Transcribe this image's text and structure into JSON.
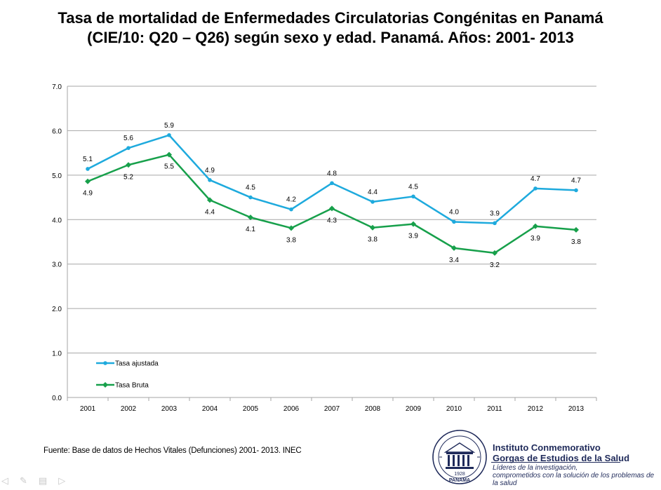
{
  "title": {
    "line1": "Tasa de mortalidad de Enfermedades Circulatorias Congénitas en Panamá",
    "line2": "(CIE/10: Q20 – Q26) según sexo y edad. Panamá. Años: 2001- 2013"
  },
  "source": "Fuente: Base de datos de Hechos Vitales (Defunciones) 2001- 2013. INEC",
  "institution": {
    "name_line1": "Instituto Conmemorativo",
    "name_line2": "Gorgas de Estudios de la Salud",
    "tagline_line1": "Líderes de la investigación,",
    "tagline_line2": "comprometidos con la solución de los problemas de la salud",
    "seal_year": "1928",
    "seal_label": "PANAMA"
  },
  "colors": {
    "tasa_ajustada": "#1eaadd",
    "tasa_bruta": "#17a04b",
    "grid": "#a6a6a6"
  },
  "chart_data": {
    "type": "line",
    "x": [
      "2001",
      "2002",
      "2003",
      "2004",
      "2005",
      "2006",
      "2007",
      "2008",
      "2009",
      "2010",
      "2011",
      "2012",
      "2013"
    ],
    "yticks": [
      "0.0",
      "1.0",
      "2.0",
      "3.0",
      "4.0",
      "5.0",
      "6.0",
      "7.0"
    ],
    "ylim": [
      0,
      7
    ],
    "grid": true,
    "legend": "bottom-left",
    "series": [
      {
        "name": "Tasa ajustada",
        "values": [
          5.14,
          5.61,
          5.9,
          4.89,
          4.5,
          4.23,
          4.82,
          4.4,
          4.52,
          3.95,
          3.92,
          4.7,
          4.66
        ],
        "labels": [
          "5.1",
          "5.6",
          "5.9",
          "4.9",
          "4.5",
          "4.2",
          "4.8",
          "4.4",
          "4.5",
          "4.0",
          "3.9",
          "4.7",
          "4.7"
        ]
      },
      {
        "name": "Tasa Bruta",
        "values": [
          4.86,
          5.23,
          5.46,
          4.44,
          4.05,
          3.81,
          4.25,
          3.82,
          3.9,
          3.36,
          3.25,
          3.85,
          3.77
        ],
        "labels": [
          "4.9",
          "5.2",
          "5.5",
          "4.4",
          "4.1",
          "3.8",
          "4.3",
          "3.8",
          "3.9",
          "3.4",
          "3.2",
          "3.9",
          "3.8"
        ]
      }
    ]
  }
}
